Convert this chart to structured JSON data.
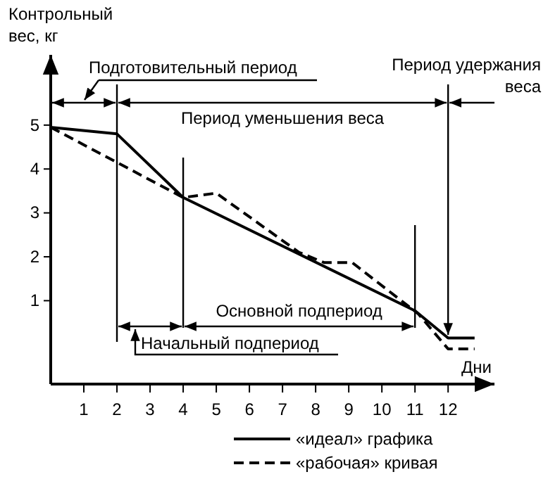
{
  "chart_data": {
    "type": "line",
    "xlabel": "Дни",
    "ylabel": "Контрольный вес, кг",
    "x": [
      0,
      2,
      4,
      11,
      12,
      12.8
    ],
    "xlim": [
      0,
      13.4
    ],
    "xticks": [
      1,
      2,
      3,
      4,
      5,
      6,
      7,
      8,
      9,
      10,
      11,
      12
    ],
    "ylim": [
      -0.9,
      6.6
    ],
    "yticks": [
      1,
      2,
      3,
      4,
      5
    ],
    "series": [
      {
        "name": "«идеал» графика",
        "color": "#000000",
        "line_style": "solid",
        "values": [
          4.95,
          4.8,
          3.35,
          0.77,
          0.15,
          0.15
        ]
      },
      {
        "name": "«рабочая» кривая",
        "color": "#000000",
        "line_style": "dashed",
        "x": [
          0,
          2,
          4,
          5,
          7.5,
          8.25,
          9.1,
          11.1,
          12,
          12.8
        ],
        "values": [
          4.95,
          4.15,
          3.35,
          3.45,
          2.1,
          1.87,
          1.87,
          0.7,
          -0.1,
          -0.1
        ]
      }
    ],
    "ref_lines": [
      {
        "axis": "x",
        "value": 2
      },
      {
        "axis": "x",
        "value": 4
      },
      {
        "axis": "x",
        "value": 11
      },
      {
        "axis": "x",
        "value": 12
      }
    ],
    "annotations": [
      "Подготовительный период",
      "Период уменьшения веса",
      "Период удержания веса",
      "Начальный подпериод",
      "Основной подпериод"
    ],
    "marker": "none",
    "grid": false,
    "legend": "bottom"
  }
}
